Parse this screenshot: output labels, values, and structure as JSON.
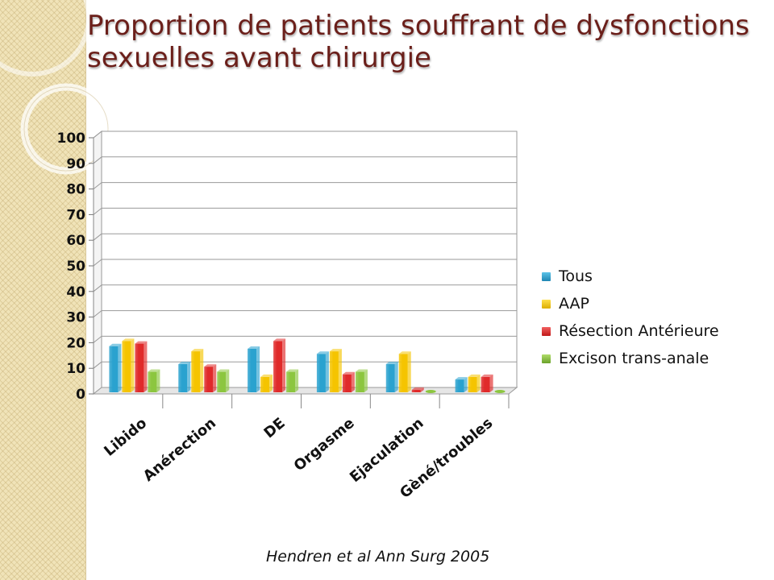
{
  "title": "Proportion de patients souffrant de dysfonctions sexuelles avant chirurgie",
  "caption": "Hendren et al Ann Surg 2005",
  "colors": {
    "Tous": "#2aa2cf",
    "AAP": "#f5c400",
    "Resection": "#e02a2a",
    "Excision": "#8cc63f"
  },
  "chart_data": {
    "type": "bar",
    "title": "",
    "xlabel": "",
    "ylabel": "",
    "ylim": [
      0,
      100
    ],
    "yticks": [
      "0",
      "10",
      "20",
      "30",
      "40",
      "50",
      "60",
      "70",
      "80",
      "90",
      "100"
    ],
    "grid": true,
    "legend": "right",
    "categories": [
      "Libido",
      "Anérection",
      "DE",
      "Orgasme",
      "Ejaculation",
      "Gèné/troubles"
    ],
    "series": [
      {
        "name": "Tous",
        "color": "#2aa2cf",
        "values": [
          18,
          11,
          17,
          15,
          11,
          5
        ]
      },
      {
        "name": "AAP",
        "color": "#f5c400",
        "values": [
          20,
          16,
          6,
          16,
          15,
          6
        ]
      },
      {
        "name": "Résection Antérieure",
        "color": "#e02a2a",
        "values": [
          19,
          10,
          20,
          7,
          1,
          6
        ]
      },
      {
        "name": "Excison trans-anale",
        "color": "#8cc63f",
        "values": [
          8,
          8,
          8,
          8,
          0,
          0
        ]
      }
    ]
  }
}
